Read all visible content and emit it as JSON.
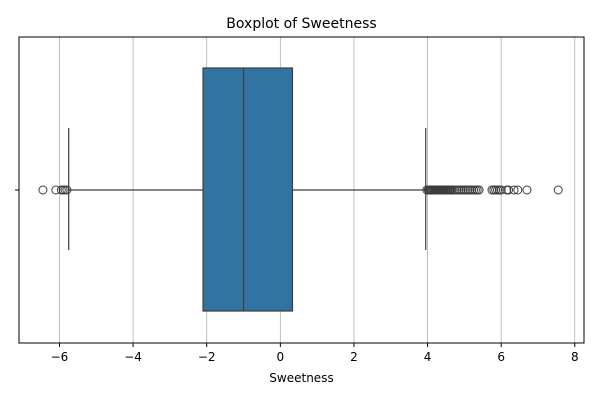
{
  "chart_data": {
    "type": "boxplot",
    "title": "Boxplot of Sweetness",
    "xlabel": "Sweetness",
    "ylabel": "",
    "xlim": [
      -7.1,
      8.25
    ],
    "xticks": [
      -6,
      -4,
      -2,
      0,
      2,
      4,
      6,
      8
    ],
    "xtick_labels": [
      "−6",
      "−4",
      "−2",
      "0",
      "2",
      "4",
      "6",
      "8"
    ],
    "grid": "vertical",
    "orientation": "horizontal",
    "box": {
      "whisker_low": -5.75,
      "q1": -2.1,
      "median": -1.0,
      "q3": 0.33,
      "whisker_high": 3.95
    },
    "outliers": [
      -6.45,
      -6.1,
      -5.95,
      -5.9,
      -5.85,
      -5.8,
      3.98,
      4.02,
      4.05,
      4.08,
      4.1,
      4.13,
      4.15,
      4.18,
      4.2,
      4.23,
      4.25,
      4.28,
      4.3,
      4.33,
      4.35,
      4.38,
      4.4,
      4.43,
      4.45,
      4.48,
      4.5,
      4.53,
      4.55,
      4.58,
      4.6,
      4.63,
      4.65,
      4.7,
      4.75,
      4.8,
      4.85,
      4.9,
      4.95,
      5.0,
      5.05,
      5.1,
      5.15,
      5.2,
      5.25,
      5.3,
      5.35,
      5.4,
      5.75,
      5.8,
      5.85,
      5.9,
      5.95,
      6.0,
      6.15,
      6.2,
      6.35,
      6.45,
      6.7,
      7.55
    ],
    "colors": {
      "box_fill": "#3274a1",
      "lines": "#3d3d3d",
      "grid": "#b0b0b0"
    }
  }
}
